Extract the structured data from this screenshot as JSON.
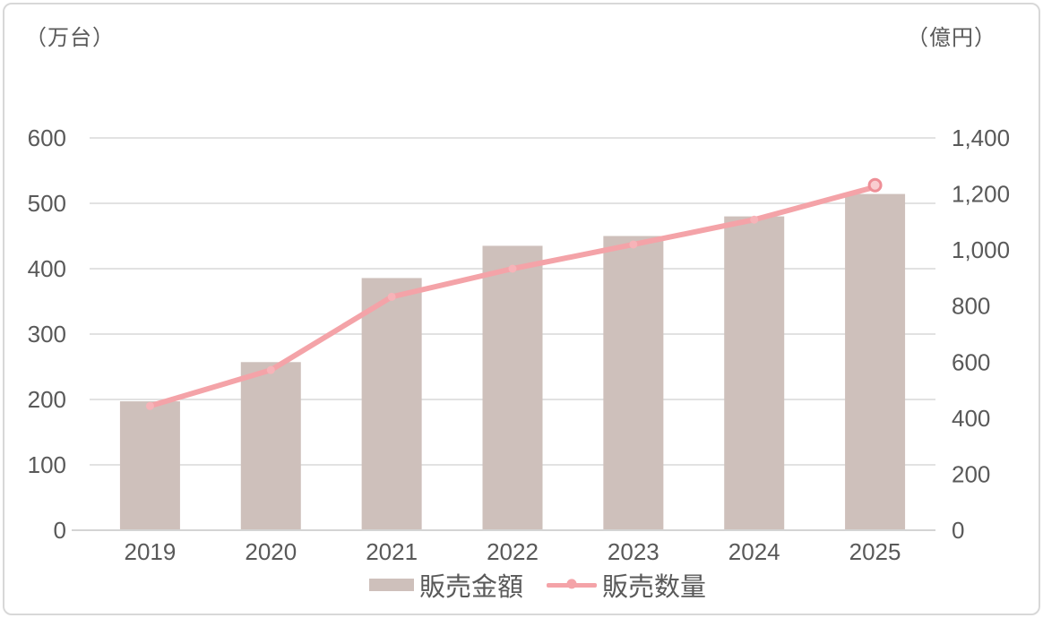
{
  "chart_data": {
    "type": "combo-bar-line",
    "title": "",
    "categories": [
      "2019",
      "2020",
      "2021",
      "2022",
      "2023",
      "2024",
      "2025"
    ],
    "series": [
      {
        "name": "販売金額",
        "type": "bar",
        "axis": "right",
        "unit": "億円",
        "values": [
          460,
          600,
          900,
          1015,
          1050,
          1120,
          1200
        ],
        "color": "#cec0bb"
      },
      {
        "name": "販売数量",
        "type": "line",
        "axis": "left",
        "unit": "万台",
        "values": [
          190,
          245,
          357,
          400,
          437,
          475,
          525
        ],
        "color": "#f4a3a8",
        "marker_color": "#f7b3b8",
        "end_marker_stroke": "#ee8e96",
        "end_marker_fill": "#f9cdd0"
      }
    ],
    "left_axis": {
      "unit_label": "（万台）",
      "min": 0,
      "max": 600,
      "step": 100,
      "tick_labels": [
        "0",
        "100",
        "200",
        "300",
        "400",
        "500",
        "600"
      ]
    },
    "right_axis": {
      "unit_label": "（億円）",
      "min": 0,
      "max": 1400,
      "step": 200,
      "tick_labels": [
        "0",
        "200",
        "400",
        "600",
        "800",
        "1,000",
        "1,200",
        "1,400"
      ]
    },
    "grid": true,
    "legend_position": "bottom"
  },
  "colors": {
    "background": "#ffffff",
    "frame_border": "#d8d8d8",
    "gridline": "#d9d9d9",
    "axis_line": "#d4d4d4",
    "tick_text": "#595959"
  }
}
